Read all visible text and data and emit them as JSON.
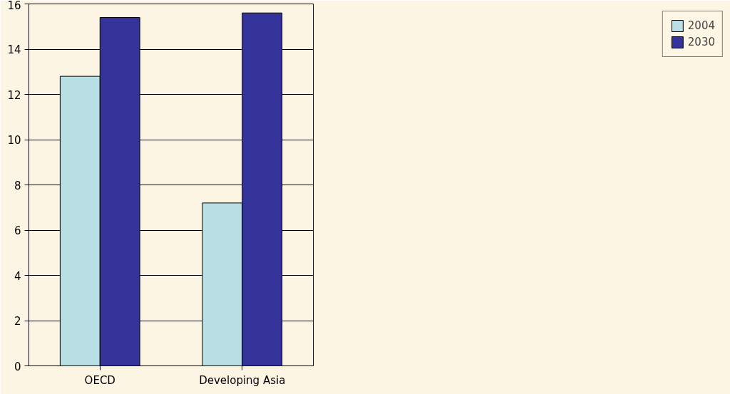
{
  "chart_data": {
    "type": "bar",
    "categories": [
      "OECD",
      "Developing Asia"
    ],
    "series": [
      {
        "name": "2004",
        "color": "#b8e0e4",
        "values": [
          12.8,
          7.2
        ]
      },
      {
        "name": "2030",
        "color": "#333399",
        "values": [
          15.4,
          15.6
        ]
      }
    ],
    "ylim": [
      0,
      16
    ],
    "yticks": [
      0,
      2,
      4,
      6,
      8,
      10,
      12,
      14,
      16
    ],
    "grid": "y",
    "legend": "right"
  }
}
